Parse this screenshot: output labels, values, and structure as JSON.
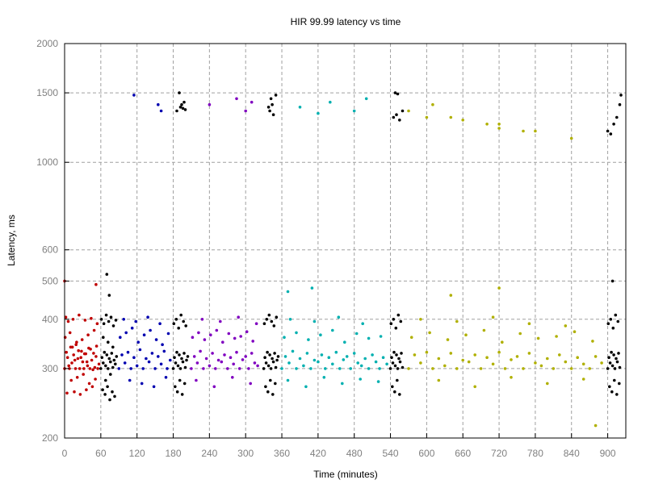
{
  "chart_data": {
    "type": "scatter",
    "title": "HIR 99.99 latency vs time",
    "xlabel": "Time (minutes)",
    "ylabel": "Latency, ms",
    "xlim": [
      0,
      930
    ],
    "ylim": [
      200,
      2000
    ],
    "y_scale": "log",
    "grid": true,
    "xticks": [
      0,
      60,
      120,
      180,
      240,
      300,
      360,
      420,
      480,
      540,
      600,
      660,
      720,
      780,
      840,
      900
    ],
    "xtick_labels": [
      "0",
      "60",
      "120",
      "180",
      "240",
      "300",
      "360",
      "420",
      "480",
      "540",
      "600",
      "660",
      "720",
      "780",
      "840",
      "900"
    ],
    "yticks": [
      200,
      300,
      400,
      500,
      600,
      1000,
      1500,
      2000
    ],
    "ytick_labels": [
      "200",
      "300",
      "400",
      "500",
      "600",
      "1000",
      "1500",
      "2000"
    ],
    "series": [
      {
        "color": "#c00000",
        "x": [
          0,
          3,
          5,
          8,
          10,
          12,
          15,
          18,
          20,
          22,
          25,
          28,
          30,
          32,
          35,
          38,
          40,
          42,
          45,
          48,
          50,
          52,
          55,
          2,
          6,
          14,
          24,
          34,
          44,
          54,
          4,
          16,
          26,
          36,
          46,
          1,
          9,
          19,
          29,
          39,
          49,
          11,
          21,
          31,
          41,
          51,
          7,
          17,
          27,
          37,
          47,
          57,
          13,
          23,
          33,
          43,
          53,
          0,
          52
        ],
        "y": [
          300,
          330,
          320,
          300,
          340,
          310,
          325,
          300,
          350,
          318,
          300,
          332,
          312,
          300,
          327,
          305,
          338,
          300,
          315,
          328,
          302,
          322,
          300,
          405,
          395,
          400,
          410,
          398,
          402,
          390,
          260,
          262,
          258,
          265,
          270,
          360,
          370,
          345,
          355,
          365,
          375,
          280,
          285,
          290,
          275,
          282,
          305,
          315,
          320,
          312,
          298,
          308,
          340,
          333,
          327,
          336,
          342,
          500,
          490
        ]
      },
      {
        "color": "#000000",
        "x": [
          60,
          62,
          64,
          66,
          68,
          70,
          72,
          74,
          76,
          78,
          80,
          82,
          84,
          86,
          61,
          65,
          69,
          73,
          77,
          81,
          85,
          63,
          67,
          71,
          75,
          79,
          83,
          64,
          72,
          80,
          68,
          76,
          70,
          74
        ],
        "y": [
          300,
          320,
          310,
          330,
          305,
          325,
          300,
          318,
          312,
          328,
          302,
          315,
          308,
          322,
          400,
          390,
          410,
          395,
          405,
          385,
          398,
          265,
          258,
          270,
          250,
          262,
          255,
          360,
          350,
          340,
          280,
          290,
          520,
          460
        ]
      },
      {
        "color": "#0000b0",
        "x": [
          90,
          95,
          100,
          105,
          110,
          115,
          120,
          125,
          130,
          135,
          140,
          145,
          150,
          155,
          160,
          165,
          170,
          175,
          92,
          102,
          112,
          122,
          132,
          142,
          152,
          162,
          172,
          98,
          118,
          138,
          158,
          108,
          128,
          148,
          168,
          115,
          155,
          160
        ],
        "y": [
          300,
          325,
          310,
          330,
          300,
          320,
          305,
          335,
          300,
          318,
          312,
          328,
          300,
          322,
          308,
          332,
          300,
          315,
          360,
          370,
          380,
          350,
          365,
          375,
          355,
          345,
          368,
          400,
          395,
          405,
          390,
          280,
          275,
          270,
          285,
          1480,
          1400,
          1350
        ]
      },
      {
        "color": "#000000",
        "x": [
          180,
          182,
          184,
          186,
          188,
          190,
          192,
          194,
          196,
          198,
          200,
          202,
          204,
          181,
          185,
          189,
          193,
          197,
          201,
          183,
          187,
          191,
          195,
          199,
          186,
          194,
          192,
          196,
          190,
          198,
          200
        ],
        "y": [
          300,
          320,
          310,
          330,
          305,
          325,
          300,
          318,
          312,
          328,
          302,
          315,
          322,
          390,
          400,
          380,
          410,
          395,
          385,
          270,
          262,
          280,
          258,
          275,
          1350,
          1400,
          1380,
          1370,
          1500,
          1420,
          1360
        ]
      },
      {
        "color": "#8000c0",
        "x": [
          210,
          215,
          220,
          225,
          230,
          235,
          240,
          245,
          250,
          255,
          260,
          265,
          270,
          275,
          280,
          285,
          290,
          295,
          300,
          305,
          310,
          315,
          320,
          212,
          222,
          232,
          242,
          252,
          262,
          272,
          282,
          292,
          302,
          312,
          228,
          258,
          288,
          318,
          218,
          248,
          278,
          308,
          240,
          285,
          300,
          310
        ],
        "y": [
          300,
          322,
          310,
          332,
          300,
          318,
          305,
          328,
          300,
          315,
          312,
          325,
          300,
          320,
          308,
          330,
          300,
          316,
          322,
          300,
          328,
          310,
          305,
          360,
          370,
          355,
          365,
          375,
          350,
          368,
          358,
          362,
          372,
          352,
          400,
          395,
          405,
          390,
          280,
          270,
          285,
          275,
          1400,
          1450,
          1350,
          1420
        ]
      },
      {
        "color": "#000000",
        "x": [
          330,
          332,
          334,
          336,
          338,
          340,
          342,
          344,
          346,
          348,
          350,
          352,
          354,
          331,
          335,
          339,
          343,
          347,
          351,
          333,
          337,
          341,
          345,
          349,
          340,
          344,
          338,
          342,
          346,
          350
        ],
        "y": [
          300,
          320,
          310,
          330,
          305,
          325,
          300,
          318,
          312,
          328,
          302,
          315,
          322,
          390,
          400,
          410,
          395,
          385,
          405,
          270,
          262,
          280,
          258,
          275,
          1350,
          1400,
          1380,
          1450,
          1320,
          1480
        ]
      },
      {
        "color": "#00b0b0",
        "x": [
          360,
          366,
          372,
          378,
          384,
          390,
          396,
          402,
          408,
          414,
          420,
          426,
          432,
          438,
          444,
          450,
          456,
          462,
          468,
          474,
          480,
          486,
          492,
          498,
          504,
          510,
          516,
          522,
          528,
          534,
          364,
          384,
          404,
          424,
          444,
          464,
          484,
          504,
          524,
          374,
          414,
          454,
          494,
          370,
          400,
          430,
          460,
          490,
          520,
          440,
          480,
          500,
          390,
          420,
          370,
          410
        ],
        "y": [
          300,
          322,
          310,
          332,
          300,
          318,
          305,
          328,
          300,
          315,
          312,
          325,
          300,
          320,
          308,
          330,
          300,
          316,
          322,
          300,
          328,
          310,
          305,
          318,
          300,
          325,
          312,
          300,
          320,
          308,
          360,
          370,
          355,
          365,
          375,
          350,
          368,
          358,
          362,
          400,
          395,
          405,
          390,
          280,
          270,
          285,
          275,
          282,
          278,
          1420,
          1350,
          1450,
          1380,
          1330,
          470,
          480
        ]
      },
      {
        "color": "#000000",
        "x": [
          540,
          542,
          544,
          546,
          548,
          550,
          552,
          554,
          556,
          558,
          560,
          541,
          545,
          549,
          553,
          557,
          543,
          547,
          551,
          555,
          545,
          550,
          555,
          560,
          548,
          552
        ],
        "y": [
          300,
          320,
          310,
          330,
          305,
          325,
          300,
          318,
          312,
          328,
          302,
          390,
          400,
          380,
          410,
          395,
          270,
          262,
          280,
          258,
          1300,
          1320,
          1280,
          1350,
          1500,
          1490
        ]
      },
      {
        "color": "#b0b000",
        "x": [
          570,
          580,
          590,
          600,
          610,
          620,
          630,
          640,
          650,
          660,
          670,
          680,
          690,
          700,
          710,
          720,
          730,
          740,
          750,
          760,
          770,
          780,
          790,
          800,
          810,
          820,
          830,
          840,
          850,
          860,
          870,
          880,
          890,
          575,
          605,
          635,
          665,
          695,
          725,
          755,
          785,
          815,
          845,
          875,
          590,
          650,
          710,
          770,
          830,
          620,
          680,
          740,
          800,
          860,
          600,
          660,
          720,
          780,
          840,
          570,
          610,
          640,
          700,
          760,
          880,
          720,
          640,
          720
        ],
        "y": [
          300,
          325,
          310,
          330,
          300,
          318,
          305,
          328,
          300,
          315,
          312,
          325,
          300,
          320,
          308,
          330,
          300,
          316,
          322,
          300,
          328,
          310,
          305,
          318,
          300,
          325,
          312,
          300,
          320,
          308,
          300,
          322,
          310,
          360,
          370,
          355,
          365,
          375,
          350,
          368,
          358,
          362,
          372,
          352,
          400,
          395,
          405,
          390,
          385,
          280,
          270,
          285,
          275,
          282,
          1300,
          1280,
          1250,
          1200,
          1150,
          1350,
          1400,
          1300,
          1250,
          1200,
          215,
          1220,
          460,
          480
        ]
      },
      {
        "color": "#000000",
        "x": [
          900,
          902,
          904,
          906,
          908,
          910,
          912,
          914,
          916,
          918,
          920,
          901,
          905,
          909,
          913,
          917,
          903,
          907,
          911,
          915,
          919,
          900,
          905,
          910,
          915,
          920,
          922,
          908
        ],
        "y": [
          300,
          320,
          310,
          330,
          305,
          325,
          300,
          318,
          312,
          328,
          302,
          390,
          400,
          380,
          410,
          395,
          270,
          262,
          280,
          258,
          275,
          1200,
          1180,
          1250,
          1300,
          1400,
          1480,
          500
        ]
      }
    ]
  }
}
